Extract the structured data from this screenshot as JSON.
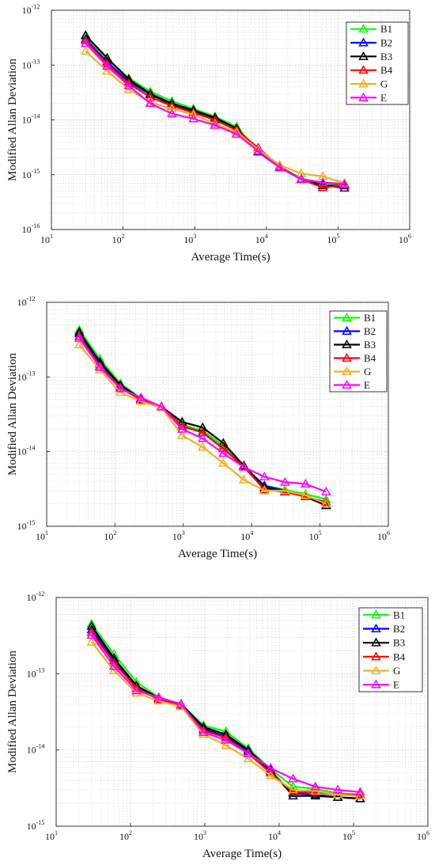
{
  "chart_data": [
    {
      "type": "line",
      "xscale": "log",
      "yscale": "log",
      "xlabel": "Average Time(s)",
      "ylabel": "Modified Allan Deviation",
      "xlim": [
        10,
        1000000
      ],
      "ylim": [
        1e-16,
        1e-12
      ],
      "x_ticks": [
        {
          "base": "10",
          "exp": "1"
        },
        {
          "base": "10",
          "exp": "2"
        },
        {
          "base": "10",
          "exp": "3"
        },
        {
          "base": "10",
          "exp": "4"
        },
        {
          "base": "10",
          "exp": "5"
        },
        {
          "base": "10",
          "exp": "6"
        }
      ],
      "y_ticks": [
        {
          "base": "10",
          "exp": "-16"
        },
        {
          "base": "10",
          "exp": "-15"
        },
        {
          "base": "10",
          "exp": "-14"
        },
        {
          "base": "10",
          "exp": "-13"
        },
        {
          "base": "10",
          "exp": "-12"
        }
      ],
      "grid": true,
      "legend_position": "top-right",
      "x": [
        30,
        60,
        120,
        240,
        480,
        960,
        1920,
        3840,
        7680,
        15360,
        30720,
        61440,
        122880
      ],
      "series": [
        {
          "name": "B1",
          "color": "#00ff00",
          "values": [
            3.4e-13,
            1.3e-13,
            5.8e-14,
            3.3e-14,
            2.2e-14,
            1.6e-14,
            1.15e-14,
            7.5e-15,
            2.7e-15,
            1.4e-15,
            8.5e-16,
            7e-16,
            6.5e-16
          ]
        },
        {
          "name": "B2",
          "color": "#0000ff",
          "values": [
            3e-13,
            1.15e-13,
            5e-14,
            2.9e-14,
            1.9e-14,
            1.4e-14,
            1.05e-14,
            6.8e-15,
            2.6e-15,
            1.35e-15,
            8.2e-16,
            6.5e-16,
            5.7e-16
          ]
        },
        {
          "name": "B3",
          "color": "#000000",
          "values": [
            3.5e-13,
            1.35e-13,
            5.5e-14,
            3e-14,
            2e-14,
            1.5e-14,
            1.1e-14,
            7e-15,
            2.7e-15,
            1.4e-15,
            8.3e-16,
            6.3e-16,
            6.3e-16
          ]
        },
        {
          "name": "B4",
          "color": "#ff0000",
          "values": [
            2.8e-13,
            1.05e-13,
            4.6e-14,
            2.6e-14,
            1.8e-14,
            1.35e-14,
            1e-14,
            6.5e-15,
            3.1e-15,
            1.4e-15,
            8.2e-16,
            5.8e-16,
            6.5e-16
          ]
        },
        {
          "name": "G",
          "color": "#edb120",
          "values": [
            1.8e-13,
            7.8e-14,
            3.6e-14,
            2.1e-14,
            1.6e-14,
            1.25e-14,
            8.5e-15,
            6e-15,
            2.9e-15,
            1.5e-15,
            1.05e-15,
            9.3e-16,
            7e-16
          ]
        },
        {
          "name": "E",
          "color": "#ff00ff",
          "values": [
            2.5e-13,
            9.5e-14,
            4.2e-14,
            2e-14,
            1.3e-14,
            1.05e-14,
            8e-15,
            5.5e-15,
            2.7e-15,
            1.35e-15,
            8.3e-16,
            7.2e-16,
            6.8e-16
          ]
        }
      ]
    },
    {
      "type": "line",
      "xscale": "log",
      "yscale": "log",
      "xlabel": "Average Time(s)",
      "ylabel": "Modified Allan Deviation",
      "xlim": [
        10,
        1000000
      ],
      "ylim": [
        1e-15,
        1e-12
      ],
      "x_ticks": [
        {
          "base": "10",
          "exp": "1"
        },
        {
          "base": "10",
          "exp": "2"
        },
        {
          "base": "10",
          "exp": "3"
        },
        {
          "base": "10",
          "exp": "4"
        },
        {
          "base": "10",
          "exp": "5"
        },
        {
          "base": "10",
          "exp": "6"
        }
      ],
      "y_ticks": [
        {
          "base": "10",
          "exp": "-15"
        },
        {
          "base": "10",
          "exp": "-14"
        },
        {
          "base": "10",
          "exp": "-13"
        },
        {
          "base": "10",
          "exp": "-12"
        }
      ],
      "grid": true,
      "legend_position": "top-right",
      "x": [
        30,
        60,
        120,
        240,
        480,
        960,
        1920,
        3840,
        7680,
        15360,
        30720,
        61440,
        122880
      ],
      "series": [
        {
          "name": "B1",
          "color": "#00ff00",
          "values": [
            4.3e-13,
            1.75e-13,
            8.2e-14,
            5.2e-14,
            4e-14,
            2.3e-14,
            1.9e-14,
            1.2e-14,
            6.5e-15,
            3.5e-15,
            3.1e-15,
            2.7e-15,
            2.3e-15
          ]
        },
        {
          "name": "B2",
          "color": "#0000ff",
          "values": [
            3.8e-13,
            1.5e-13,
            7.5e-14,
            5e-14,
            4e-14,
            2.2e-14,
            1.8e-14,
            1.1e-14,
            6.3e-15,
            3.5e-15,
            3e-15,
            2.5e-15,
            1.9e-15
          ]
        },
        {
          "name": "B3",
          "color": "#000000",
          "values": [
            4e-13,
            1.6e-13,
            7.8e-14,
            5.1e-14,
            4e-14,
            2.5e-14,
            2.1e-14,
            1.3e-14,
            6.5e-15,
            3.3e-15,
            2.9e-15,
            2.5e-15,
            1.9e-15
          ]
        },
        {
          "name": "B4",
          "color": "#ff0000",
          "values": [
            3.5e-13,
            1.4e-13,
            7.2e-14,
            4.9e-14,
            4e-14,
            2.2e-14,
            1.8e-14,
            1.1e-14,
            6.3e-15,
            3.1e-15,
            2.9e-15,
            2.5e-15,
            2.1e-15
          ]
        },
        {
          "name": "G",
          "color": "#edb120",
          "values": [
            2.7e-13,
            1.25e-13,
            6.2e-14,
            4.7e-14,
            3.9e-14,
            1.65e-14,
            1.15e-14,
            7e-15,
            4.2e-15,
            3e-15,
            3e-15,
            2.6e-15,
            2e-15
          ]
        },
        {
          "name": "E",
          "color": "#ff00ff",
          "values": [
            3.3e-13,
            1.35e-13,
            7e-14,
            5.3e-14,
            4e-14,
            2e-14,
            1.5e-14,
            9.5e-15,
            6.2e-15,
            4.6e-15,
            3.9e-15,
            3.7e-15,
            2.9e-15
          ]
        }
      ]
    },
    {
      "type": "line",
      "xscale": "log",
      "yscale": "log",
      "xlabel": "Average Time(s)",
      "ylabel": "Modified Allan Deviation",
      "xlim": [
        10,
        1000000
      ],
      "ylim": [
        1e-15,
        1e-12
      ],
      "x_ticks": [
        {
          "base": "10",
          "exp": "1"
        },
        {
          "base": "10",
          "exp": "2"
        },
        {
          "base": "10",
          "exp": "3"
        },
        {
          "base": "10",
          "exp": "4"
        },
        {
          "base": "10",
          "exp": "5"
        },
        {
          "base": "10",
          "exp": "6"
        }
      ],
      "y_ticks": [
        {
          "base": "10",
          "exp": "-15"
        },
        {
          "base": "10",
          "exp": "-14"
        },
        {
          "base": "10",
          "exp": "-13"
        },
        {
          "base": "10",
          "exp": "-12"
        }
      ],
      "grid": true,
      "legend_position": "top-right",
      "x": [
        30,
        60,
        120,
        240,
        480,
        960,
        1920,
        3840,
        7680,
        15360,
        30720,
        61440,
        122880
      ],
      "series": [
        {
          "name": "B1",
          "color": "#00ff00",
          "values": [
            4.5e-13,
            1.8e-13,
            7.8e-14,
            4.9e-14,
            4e-14,
            2.1e-14,
            1.75e-14,
            1.05e-14,
            5.6e-15,
            3.3e-15,
            3.1e-15,
            2.7e-15,
            2.6e-15
          ]
        },
        {
          "name": "B2",
          "color": "#0000ff",
          "values": [
            3.8e-13,
            1.5e-13,
            6.8e-14,
            4.7e-14,
            3.9e-14,
            1.9e-14,
            1.5e-14,
            9.5e-15,
            5.2e-15,
            2.7e-15,
            2.6e-15,
            2.4e-15,
            2.3e-15
          ]
        },
        {
          "name": "B3",
          "color": "#000000",
          "values": [
            4.2e-13,
            1.6e-13,
            7e-14,
            4.8e-14,
            4e-14,
            2e-14,
            1.6e-14,
            1e-14,
            5.4e-15,
            2.5e-15,
            2.5e-15,
            2.4e-15,
            2.3e-15
          ]
        },
        {
          "name": "B4",
          "color": "#ff0000",
          "values": [
            3.5e-13,
            1.4e-13,
            6.5e-14,
            4.6e-14,
            3.8e-14,
            1.8e-14,
            1.45e-14,
            9e-15,
            5e-15,
            2.8e-15,
            2.8e-15,
            2.6e-15,
            2.6e-15
          ]
        },
        {
          "name": "G",
          "color": "#edb120",
          "values": [
            2.6e-13,
            1.1e-13,
            5.6e-14,
            4.4e-14,
            3.7e-14,
            1.6e-14,
            1.15e-14,
            7.7e-15,
            4.6e-15,
            3e-15,
            2.9e-15,
            2.6e-15,
            2.5e-15
          ]
        },
        {
          "name": "E",
          "color": "#ff00ff",
          "values": [
            3.2e-13,
            1.25e-13,
            6e-14,
            4.9e-14,
            4e-14,
            1.7e-14,
            1.35e-14,
            9e-15,
            5.8e-15,
            4.2e-15,
            3.3e-15,
            3e-15,
            2.8e-15
          ]
        }
      ]
    }
  ]
}
